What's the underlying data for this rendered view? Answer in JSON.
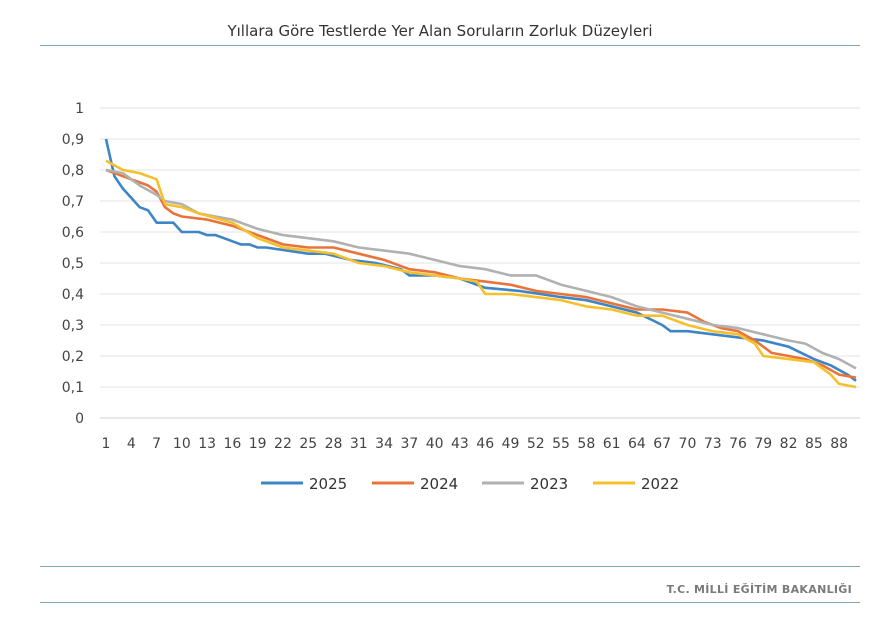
{
  "page": {
    "footer": "T.C. MİLLİ EĞİTİM BAKANLIĞI"
  },
  "chart_data": {
    "type": "line",
    "title": "Yıllara Göre Testlerde Yer Alan Soruların Zorluk Düzeyleri",
    "xlabel": "",
    "ylabel": "",
    "x_range": [
      1,
      90
    ],
    "x_tick_labels": [
      "1",
      "4",
      "7",
      "10",
      "13",
      "16",
      "19",
      "22",
      "25",
      "28",
      "31",
      "34",
      "37",
      "40",
      "43",
      "46",
      "49",
      "52",
      "55",
      "58",
      "61",
      "64",
      "67",
      "70",
      "73",
      "76",
      "79",
      "82",
      "85",
      "88"
    ],
    "ylim": [
      0,
      1
    ],
    "y_ticks": [
      "0",
      "0,1",
      "0,2",
      "0,3",
      "0,4",
      "0,5",
      "0,6",
      "0,7",
      "0,8",
      "0,9",
      "1"
    ],
    "grid": true,
    "legend_position": "bottom",
    "series": [
      {
        "name": "2025",
        "color": "#3d85c6",
        "points": [
          [
            1,
            0.9
          ],
          [
            2,
            0.78
          ],
          [
            3,
            0.74
          ],
          [
            4,
            0.71
          ],
          [
            5,
            0.68
          ],
          [
            6,
            0.67
          ],
          [
            7,
            0.63
          ],
          [
            8,
            0.63
          ],
          [
            9,
            0.63
          ],
          [
            10,
            0.6
          ],
          [
            11,
            0.6
          ],
          [
            12,
            0.6
          ],
          [
            13,
            0.59
          ],
          [
            14,
            0.59
          ],
          [
            15,
            0.58
          ],
          [
            16,
            0.57
          ],
          [
            17,
            0.56
          ],
          [
            18,
            0.56
          ],
          [
            19,
            0.55
          ],
          [
            20,
            0.55
          ],
          [
            25,
            0.53
          ],
          [
            27,
            0.53
          ],
          [
            30,
            0.51
          ],
          [
            33,
            0.5
          ],
          [
            36,
            0.48
          ],
          [
            37,
            0.46
          ],
          [
            40,
            0.46
          ],
          [
            43,
            0.45
          ],
          [
            46,
            0.42
          ],
          [
            50,
            0.41
          ],
          [
            55,
            0.39
          ],
          [
            58,
            0.38
          ],
          [
            61,
            0.36
          ],
          [
            64,
            0.34
          ],
          [
            67,
            0.3
          ],
          [
            68,
            0.28
          ],
          [
            70,
            0.28
          ],
          [
            73,
            0.27
          ],
          [
            76,
            0.26
          ],
          [
            79,
            0.25
          ],
          [
            82,
            0.23
          ],
          [
            85,
            0.19
          ],
          [
            87,
            0.17
          ],
          [
            89,
            0.14
          ],
          [
            90,
            0.12
          ]
        ]
      },
      {
        "name": "2024",
        "color": "#e8743b",
        "points": [
          [
            1,
            0.8
          ],
          [
            3,
            0.78
          ],
          [
            5,
            0.76
          ],
          [
            6,
            0.75
          ],
          [
            7,
            0.73
          ],
          [
            8,
            0.68
          ],
          [
            9,
            0.66
          ],
          [
            10,
            0.65
          ],
          [
            13,
            0.64
          ],
          [
            16,
            0.62
          ],
          [
            19,
            0.59
          ],
          [
            22,
            0.56
          ],
          [
            25,
            0.55
          ],
          [
            28,
            0.55
          ],
          [
            31,
            0.53
          ],
          [
            34,
            0.51
          ],
          [
            37,
            0.48
          ],
          [
            40,
            0.47
          ],
          [
            43,
            0.45
          ],
          [
            46,
            0.44
          ],
          [
            49,
            0.43
          ],
          [
            52,
            0.41
          ],
          [
            55,
            0.4
          ],
          [
            58,
            0.39
          ],
          [
            61,
            0.37
          ],
          [
            64,
            0.35
          ],
          [
            67,
            0.35
          ],
          [
            70,
            0.34
          ],
          [
            72,
            0.31
          ],
          [
            74,
            0.29
          ],
          [
            76,
            0.28
          ],
          [
            78,
            0.25
          ],
          [
            80,
            0.21
          ],
          [
            82,
            0.2
          ],
          [
            84,
            0.19
          ],
          [
            86,
            0.17
          ],
          [
            88,
            0.14
          ],
          [
            90,
            0.13
          ]
        ]
      },
      {
        "name": "2023",
        "color": "#b1b1b1",
        "points": [
          [
            1,
            0.8
          ],
          [
            3,
            0.79
          ],
          [
            4,
            0.77
          ],
          [
            5,
            0.75
          ],
          [
            7,
            0.72
          ],
          [
            8,
            0.7
          ],
          [
            10,
            0.69
          ],
          [
            12,
            0.66
          ],
          [
            16,
            0.64
          ],
          [
            19,
            0.61
          ],
          [
            22,
            0.59
          ],
          [
            25,
            0.58
          ],
          [
            28,
            0.57
          ],
          [
            31,
            0.55
          ],
          [
            34,
            0.54
          ],
          [
            37,
            0.53
          ],
          [
            40,
            0.51
          ],
          [
            43,
            0.49
          ],
          [
            46,
            0.48
          ],
          [
            49,
            0.46
          ],
          [
            52,
            0.46
          ],
          [
            55,
            0.43
          ],
          [
            58,
            0.41
          ],
          [
            61,
            0.39
          ],
          [
            64,
            0.36
          ],
          [
            67,
            0.34
          ],
          [
            70,
            0.32
          ],
          [
            73,
            0.3
          ],
          [
            76,
            0.29
          ],
          [
            79,
            0.27
          ],
          [
            82,
            0.25
          ],
          [
            84,
            0.24
          ],
          [
            86,
            0.21
          ],
          [
            88,
            0.19
          ],
          [
            90,
            0.16
          ]
        ]
      },
      {
        "name": "2022",
        "color": "#f5c02c",
        "points": [
          [
            1,
            0.83
          ],
          [
            3,
            0.8
          ],
          [
            5,
            0.79
          ],
          [
            7,
            0.77
          ],
          [
            8,
            0.69
          ],
          [
            10,
            0.68
          ],
          [
            12,
            0.66
          ],
          [
            16,
            0.63
          ],
          [
            19,
            0.58
          ],
          [
            22,
            0.55
          ],
          [
            25,
            0.54
          ],
          [
            28,
            0.53
          ],
          [
            31,
            0.5
          ],
          [
            34,
            0.49
          ],
          [
            37,
            0.47
          ],
          [
            40,
            0.46
          ],
          [
            43,
            0.45
          ],
          [
            45,
            0.44
          ],
          [
            46,
            0.4
          ],
          [
            49,
            0.4
          ],
          [
            52,
            0.39
          ],
          [
            55,
            0.38
          ],
          [
            58,
            0.36
          ],
          [
            61,
            0.35
          ],
          [
            64,
            0.33
          ],
          [
            67,
            0.33
          ],
          [
            70,
            0.3
          ],
          [
            73,
            0.28
          ],
          [
            76,
            0.27
          ],
          [
            78,
            0.24
          ],
          [
            79,
            0.2
          ],
          [
            82,
            0.19
          ],
          [
            85,
            0.18
          ],
          [
            87,
            0.14
          ],
          [
            88,
            0.11
          ],
          [
            90,
            0.1
          ]
        ]
      }
    ]
  }
}
